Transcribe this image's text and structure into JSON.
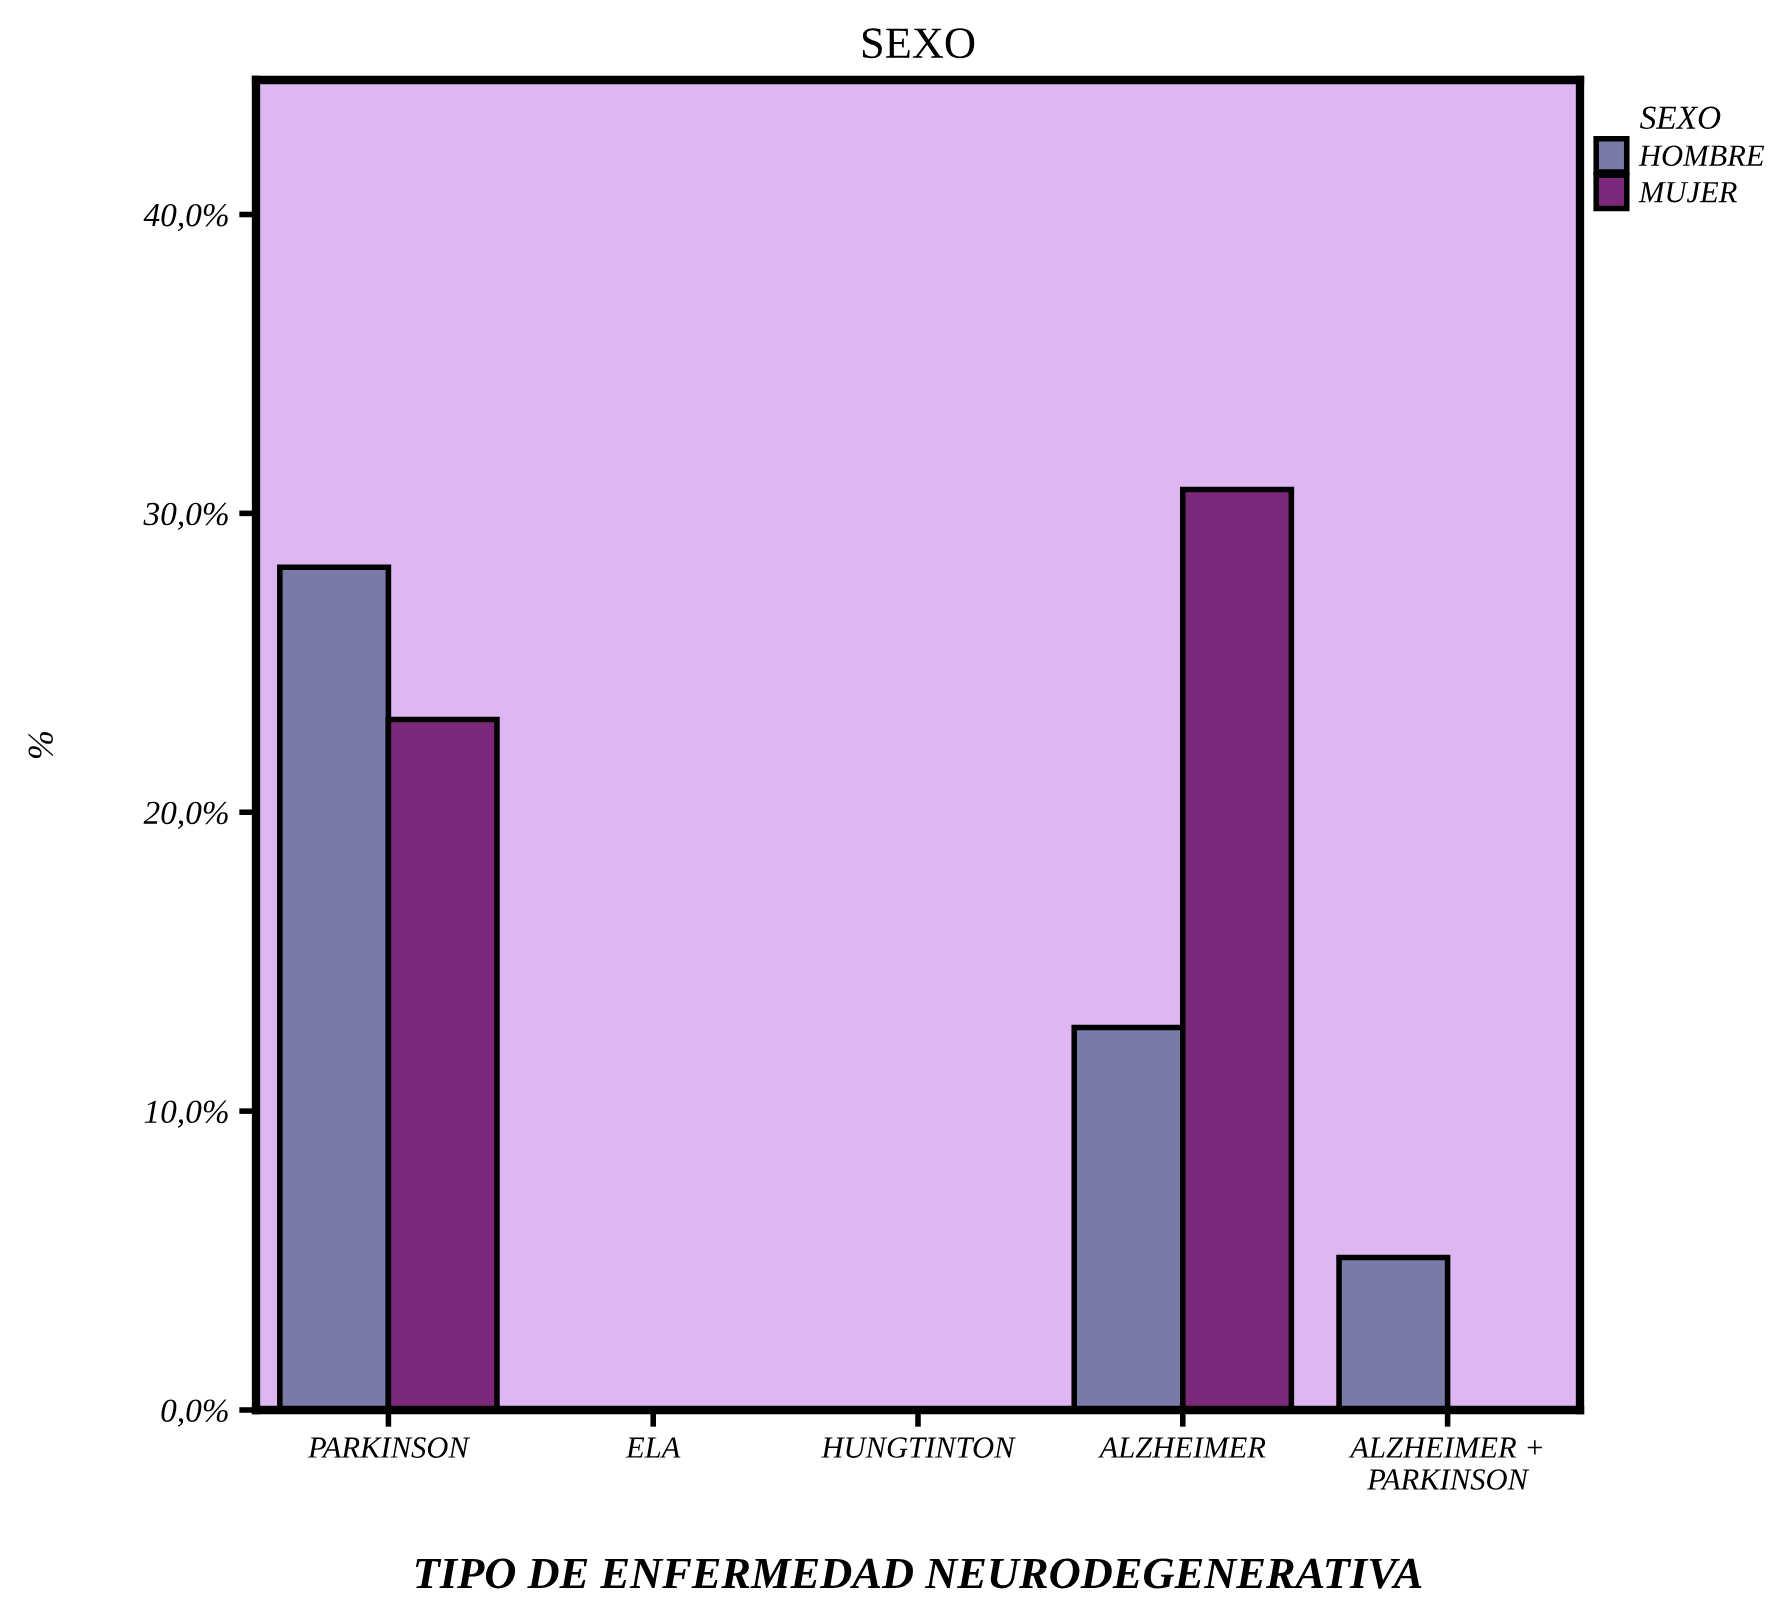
{
  "chart_data": {
    "type": "bar",
    "title": "SEXO",
    "xlabel": "TIPO DE ENFERMEDAD NEURODEGENERATIVA",
    "ylabel": "%",
    "legend_title": "SEXO",
    "legend": "top right",
    "categories": [
      "PARKINSON",
      "ELA",
      "HUNGTINTON",
      "ALZHEIMER",
      "ALZHEIMER +\nPARKINSON"
    ],
    "series": [
      {
        "name": "HOMBRE",
        "color": "#7a7aa8",
        "values": [
          28.2,
          0,
          0,
          12.8,
          5.1
        ]
      },
      {
        "name": "MUJER",
        "color": "#7b287a",
        "values": [
          23.1,
          0,
          0,
          30.8,
          0
        ]
      }
    ],
    "ylim": [
      0,
      44.5
    ],
    "yticks": [
      {
        "value": 0,
        "label": "0,0%"
      },
      {
        "value": 10,
        "label": "10,0%"
      },
      {
        "value": 20,
        "label": "20,0%"
      },
      {
        "value": 30,
        "label": "30,0%"
      },
      {
        "value": 40,
        "label": "40,0%"
      }
    ],
    "grid": false
  }
}
